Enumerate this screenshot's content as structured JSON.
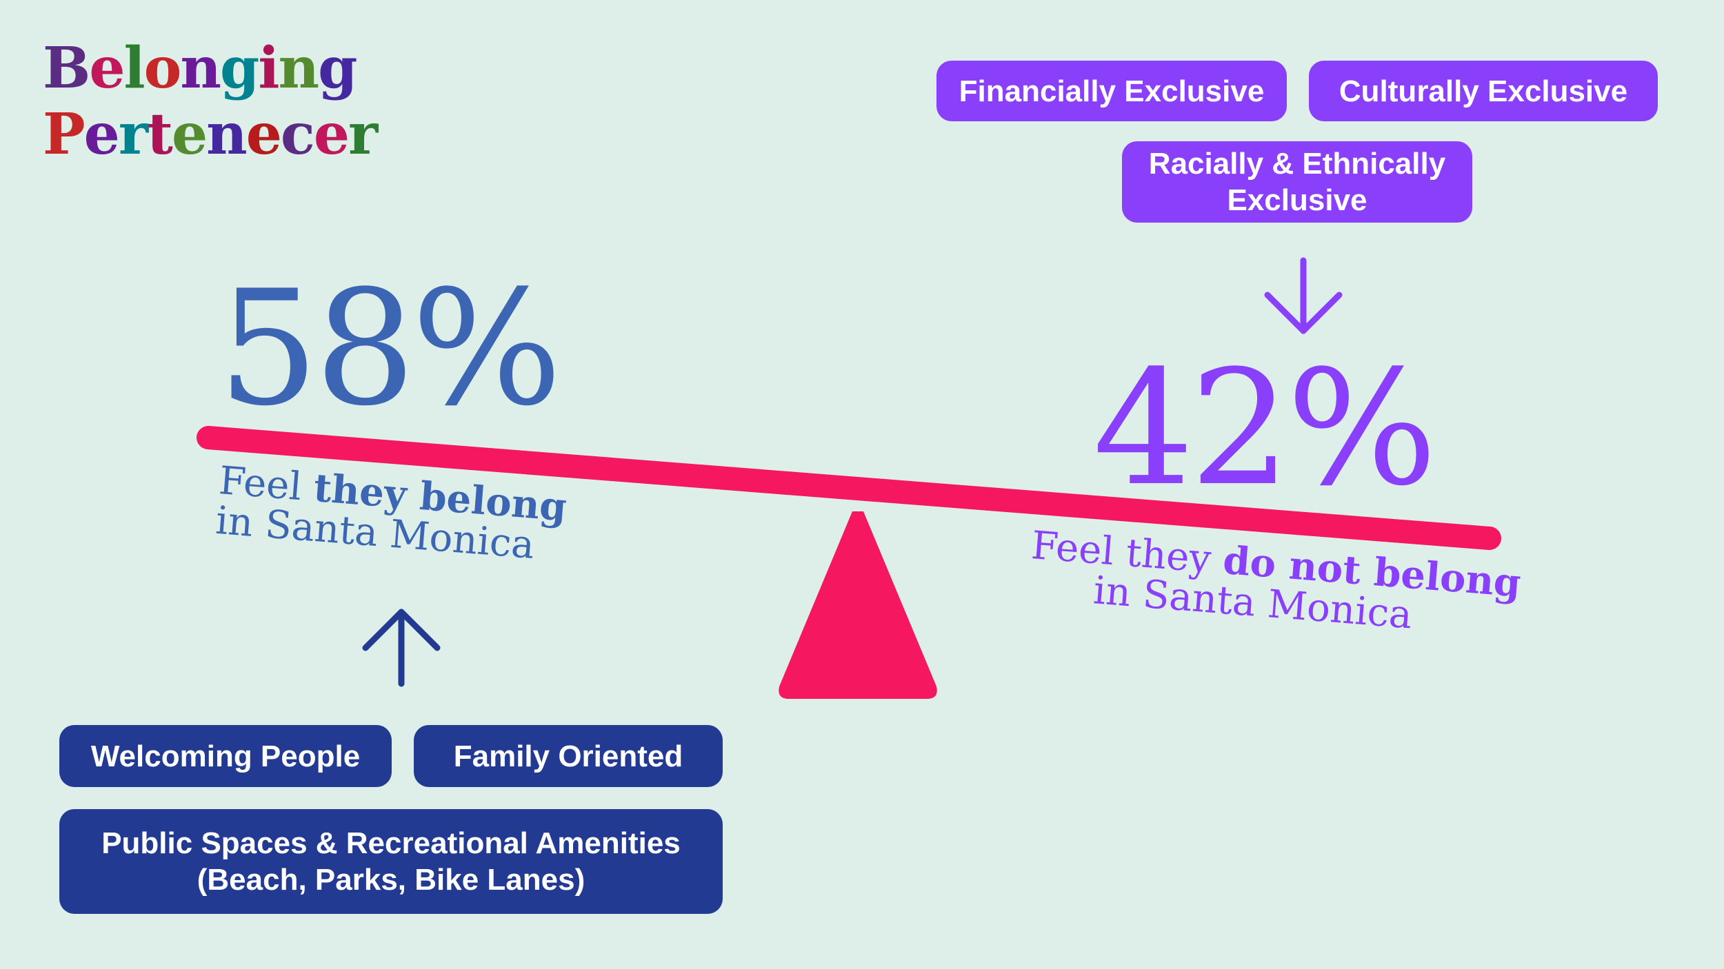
{
  "logo": {
    "line1": "Belonging",
    "line2": "Pertenecer",
    "colors": [
      "#5a2d82",
      "#c2185b",
      "#2e7d32",
      "#c62828",
      "#6a1b9a",
      "#00838f",
      "#ad1457",
      "#558b2f",
      "#4527a0",
      "#b71c1c"
    ]
  },
  "colors": {
    "background": "#ddefe8",
    "belong_blue": "#3c66b4",
    "dark_blue": "#233a92",
    "purple": "#8a3ffb",
    "beam_pink": "#f5175f"
  },
  "belong": {
    "percent": "58%",
    "value": 58,
    "caption_pre": "Feel ",
    "caption_bold": "they belong",
    "caption_line2": "in Santa Monica",
    "reasons": [
      "Welcoming People",
      "Family Oriented",
      "Public Spaces & Recreational Amenities (Beach, Parks, Bike Lanes)"
    ]
  },
  "not_belong": {
    "percent": "42%",
    "value": 42,
    "caption_pre": "Feel they ",
    "caption_bold": "do not belong",
    "caption_line2": "in Santa Monica",
    "reasons": [
      "Financially Exclusive",
      "Culturally Exclusive",
      "Racially & Ethnically Exclusive"
    ]
  },
  "icons": {
    "up": "arrow-up-icon",
    "down": "arrow-down-icon"
  }
}
